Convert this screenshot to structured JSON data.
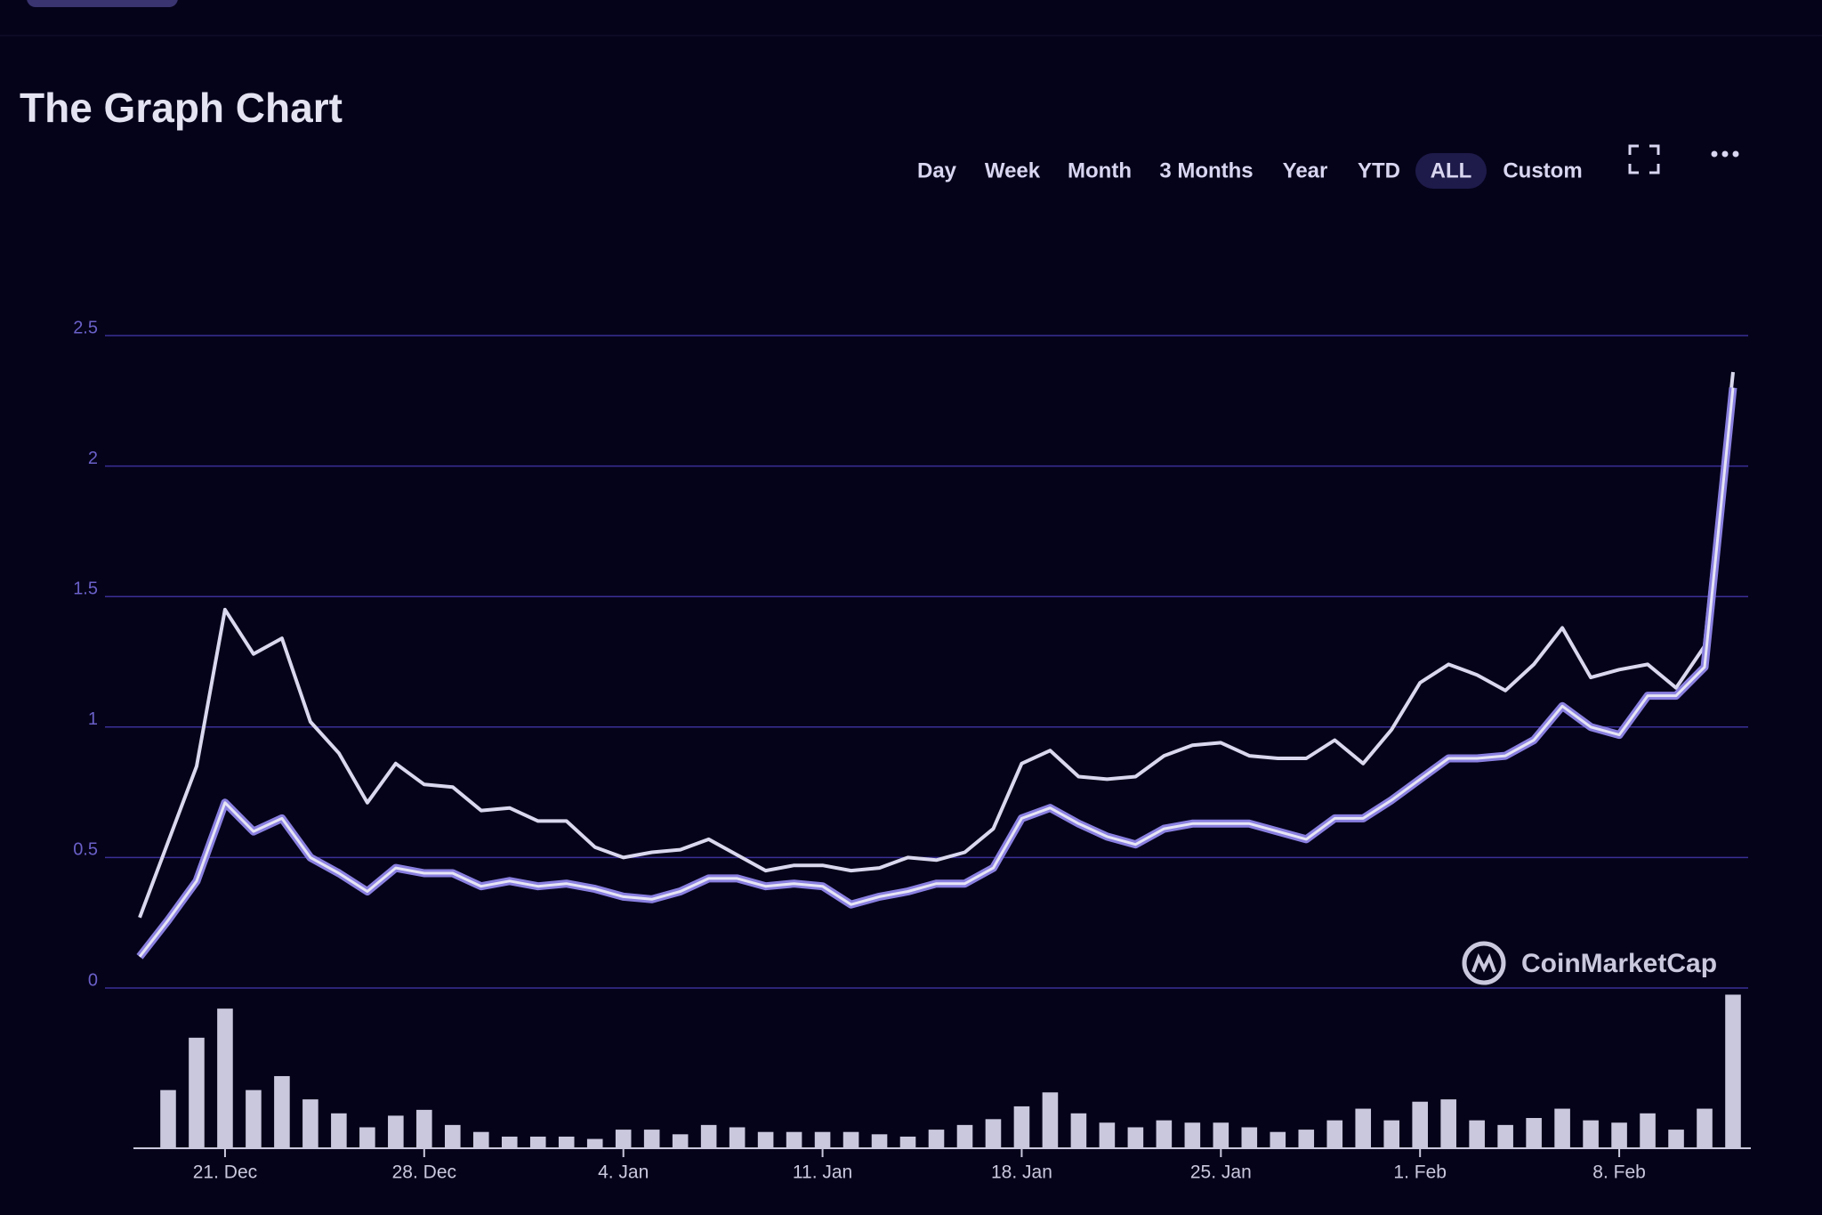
{
  "toolbar": {
    "buttons": [
      "Day",
      "Week",
      "Month",
      "3 Months",
      "Year",
      "YTD",
      "ALL",
      "Custom"
    ],
    "active": "ALL"
  },
  "watermark": "CoinMarketCap",
  "chart_data": {
    "type": "line",
    "title": "The Graph Chart",
    "categories": [
      null,
      null,
      null,
      "21. Dec",
      null,
      null,
      null,
      null,
      null,
      null,
      "28. Dec",
      null,
      null,
      null,
      null,
      null,
      null,
      "4. Jan",
      null,
      null,
      null,
      null,
      null,
      null,
      "11. Jan",
      null,
      null,
      null,
      null,
      null,
      null,
      "18. Jan",
      null,
      null,
      null,
      null,
      null,
      null,
      "25. Jan",
      null,
      null,
      null,
      null,
      null,
      null,
      "1. Feb",
      null,
      null,
      null,
      null,
      null,
      null,
      "8. Feb",
      null,
      null,
      null,
      null
    ],
    "series": [
      {
        "color": "#d9d8ee",
        "values": [
          0.27,
          0.56,
          0.85,
          1.45,
          1.28,
          1.34,
          1.02,
          0.9,
          0.71,
          0.86,
          0.78,
          0.77,
          0.68,
          0.69,
          0.64,
          0.64,
          0.54,
          0.5,
          0.52,
          0.53,
          0.57,
          0.51,
          0.45,
          0.47,
          0.47,
          0.45,
          0.46,
          0.5,
          0.49,
          0.52,
          0.61,
          0.86,
          0.91,
          0.81,
          0.8,
          0.81,
          0.89,
          0.93,
          0.94,
          0.89,
          0.88,
          0.88,
          0.95,
          0.86,
          0.99,
          1.17,
          1.24,
          1.2,
          1.14,
          1.24,
          1.38,
          1.19,
          1.22,
          1.24,
          1.15,
          1.31,
          2.36
        ]
      },
      {
        "color": "#8a80e0",
        "values": [
          0.12,
          0.26,
          0.41,
          0.71,
          0.6,
          0.65,
          0.5,
          0.44,
          0.37,
          0.46,
          0.44,
          0.44,
          0.39,
          0.41,
          0.39,
          0.4,
          0.38,
          0.35,
          0.34,
          0.37,
          0.42,
          0.42,
          0.39,
          0.4,
          0.39,
          0.32,
          0.35,
          0.37,
          0.4,
          0.4,
          0.46,
          0.65,
          0.69,
          0.63,
          0.58,
          0.55,
          0.61,
          0.63,
          0.63,
          0.63,
          0.6,
          0.57,
          0.65,
          0.65,
          0.72,
          0.8,
          0.88,
          0.88,
          0.89,
          0.95,
          1.08,
          1.0,
          0.97,
          1.12,
          1.12,
          1.23,
          2.3
        ]
      },
      {
        "type": "bar",
        "axis": "y2",
        "color": "#c9c8dd",
        "values": [
          null,
          50,
          95,
          120,
          50,
          62,
          42,
          30,
          18,
          28,
          33,
          20,
          14,
          10,
          10,
          10,
          8,
          16,
          16,
          12,
          20,
          18,
          14,
          14,
          14,
          14,
          12,
          10,
          16,
          20,
          25,
          36,
          48,
          30,
          22,
          18,
          24,
          22,
          22,
          18,
          14,
          16,
          24,
          34,
          24,
          40,
          42,
          24,
          20,
          26,
          34,
          24,
          22,
          30,
          16,
          34,
          132
        ]
      }
    ],
    "ylim": [
      0,
      2.5
    ],
    "yticks": [
      0,
      0.5,
      1,
      1.5,
      2,
      2.5
    ],
    "y2lim": [
      0,
      140
    ],
    "grid": true
  }
}
